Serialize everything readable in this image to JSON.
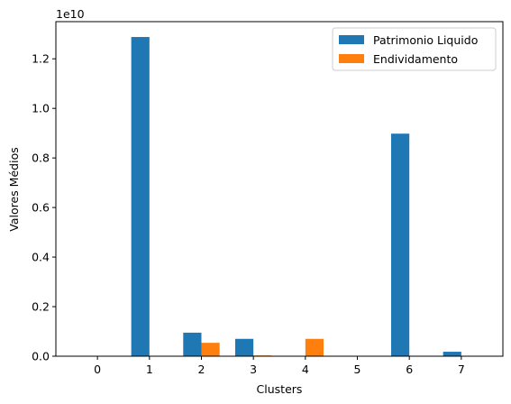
{
  "chart_data": {
    "type": "bar",
    "title": "",
    "xlabel": "Clusters",
    "ylabel": "Valores Médios",
    "offset_label": "1e10",
    "categories": [
      "0",
      "1",
      "2",
      "3",
      "4",
      "5",
      "6",
      "7"
    ],
    "x_tick_labels": [
      "0",
      "1",
      "2",
      "3",
      "4",
      "5",
      "6",
      "7"
    ],
    "y_ticks": [
      0.0,
      0.2,
      0.4,
      0.6,
      0.8,
      1.0,
      1.2
    ],
    "y_tick_labels": [
      "0.0",
      "0.2",
      "0.4",
      "0.6",
      "0.8",
      "1.0",
      "1.2"
    ],
    "xlim": [
      -0.8,
      7.8
    ],
    "ylim": [
      0,
      1.35
    ],
    "grid": false,
    "legend_position": "top-right",
    "series": [
      {
        "name": "Patrimonio Liquido",
        "color": "#1f77b4",
        "values": [
          0.0,
          1.288,
          0.095,
          0.07,
          0.0,
          0.0,
          0.898,
          0.018
        ]
      },
      {
        "name": "Endividamento",
        "color": "#ff7f0e",
        "values": [
          0.0,
          0.0,
          0.054,
          0.003,
          0.07,
          0.0,
          0.0,
          0.0
        ]
      }
    ]
  }
}
